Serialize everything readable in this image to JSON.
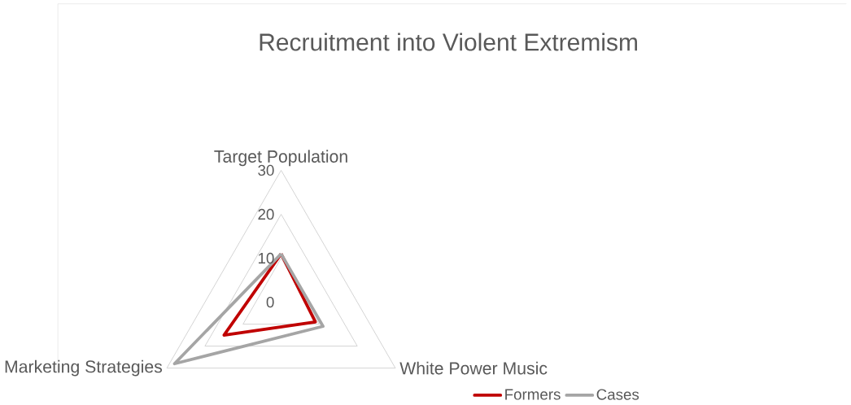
{
  "chart_data": {
    "type": "radar",
    "title": "Recruitment into Violent Extremism",
    "categories": [
      "Target Population",
      "White Power Music",
      "Marketing Strategies"
    ],
    "series": [
      {
        "name": "Formers",
        "color": "#c00000",
        "values": [
          11,
          9,
          15
        ]
      },
      {
        "name": "Cases",
        "color": "#a5a5a5",
        "values": [
          11,
          11,
          28
        ]
      }
    ],
    "ylim": [
      0,
      30
    ],
    "yticks": [
      0,
      10,
      20,
      30
    ],
    "grid": true,
    "legend": "bottom right",
    "marker": "none"
  }
}
